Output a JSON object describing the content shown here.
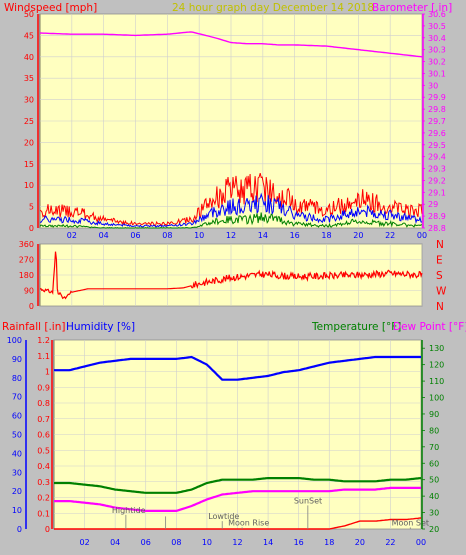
{
  "header": {
    "left_label": "Windspeed [mph]",
    "center_label": "24 hour graph day   December 14 2018",
    "right_label": "Barometer [.in]"
  },
  "colors": {
    "frame": "#c0c0c0",
    "plot_bg": "#ffffc0",
    "grid": "#cfcfcf",
    "wind_axis": "#ff0000",
    "baro_axis": "#ff00ff",
    "title": "#c0c000",
    "humidity": "#0000ff",
    "temperature": "#008000",
    "dewpoint": "#ff00ff",
    "rain": "#ff0000",
    "axis_dark": "#000000"
  },
  "x_ticks": [
    "02",
    "04",
    "06",
    "08",
    "10",
    "12",
    "14",
    "16",
    "18",
    "20",
    "22",
    "00"
  ],
  "chart_data": [
    {
      "type": "line",
      "panel": "wind-barometer",
      "y_left": {
        "label": "Windspeed [mph]",
        "ylim": [
          0,
          50
        ],
        "ticks": [
          "0",
          "5",
          "10",
          "15",
          "20",
          "25",
          "30",
          "35",
          "40",
          "45",
          "50"
        ]
      },
      "y_right": {
        "label": "Barometer [.in]",
        "ylim": [
          28.8,
          30.6
        ],
        "ticks": [
          "28.8",
          "28.9",
          "29",
          "29.1",
          "29.2",
          "29.3",
          "29.4",
          "29.5",
          "29.6",
          "29.7",
          "29.8",
          "29.9",
          "30",
          "30.1",
          "30.2",
          "30.3",
          "30.4",
          "30.5",
          "30.6"
        ]
      },
      "x": [
        0,
        2,
        4,
        6,
        8,
        9.5,
        11,
        12,
        13,
        14,
        15,
        16,
        18,
        20,
        22,
        24
      ],
      "series": [
        {
          "key": "barometer",
          "values": [
            30.44,
            30.43,
            30.43,
            30.42,
            30.43,
            30.45,
            30.4,
            30.36,
            30.35,
            30.35,
            30.34,
            30.34,
            30.33,
            30.3,
            30.27,
            30.24
          ]
        },
        {
          "key": "wind_gust",
          "values": [
            4,
            4,
            2,
            1,
            1,
            2,
            7,
            9,
            9,
            10,
            8,
            6,
            4,
            7,
            5,
            4
          ]
        },
        {
          "key": "wind_avg",
          "values": [
            2,
            2,
            1,
            0.5,
            0.5,
            1,
            4,
            5,
            5,
            6,
            5,
            3,
            2,
            4,
            3,
            2
          ]
        },
        {
          "key": "wind_min",
          "values": [
            0.5,
            0.5,
            0,
            0,
            0,
            0,
            1.5,
            2,
            2,
            2.5,
            2,
            1,
            0.5,
            1.5,
            1,
            0.5
          ]
        }
      ]
    },
    {
      "type": "line",
      "panel": "wind-direction",
      "y_left": {
        "ylim": [
          0,
          360
        ],
        "ticks": [
          "0",
          "90",
          "180",
          "270",
          "360"
        ]
      },
      "y_right_labels": [
        "N",
        "W",
        "S",
        "E",
        "N"
      ],
      "x": [
        0,
        0.8,
        1,
        1.1,
        1.3,
        1.5,
        2,
        3,
        8,
        9,
        10,
        12,
        14,
        16,
        18,
        20,
        22,
        24
      ],
      "values": [
        100,
        80,
        350,
        60,
        80,
        40,
        80,
        100,
        100,
        105,
        130,
        165,
        185,
        170,
        175,
        180,
        190,
        180
      ]
    },
    {
      "type": "line",
      "panel": "rain-humidity-temp",
      "y_left_rain": {
        "label": "Rainfall [.in]",
        "ylim": [
          0,
          1.2
        ],
        "ticks": [
          "0",
          "0.1",
          "0.2",
          "0.3",
          "0.4",
          "0.5",
          "0.6",
          "0.7",
          "0.8",
          "0.9",
          "1",
          "1.1",
          "1.2"
        ]
      },
      "y_left_humidity": {
        "label": "Humidity [%]",
        "ylim": [
          0,
          100
        ],
        "ticks": [
          "0",
          "10",
          "20",
          "30",
          "40",
          "50",
          "60",
          "70",
          "80",
          "90",
          "100"
        ]
      },
      "y_right": {
        "label": "Temperature [°F]",
        "label2": "Dew Point [°F]",
        "ylim": [
          20,
          135
        ],
        "ticks": [
          "20",
          "30",
          "40",
          "50",
          "60",
          "70",
          "80",
          "90",
          "100",
          "110",
          "120",
          "130"
        ]
      },
      "x": [
        0,
        1,
        2,
        3,
        4,
        5,
        6,
        7,
        8,
        9,
        10,
        11,
        12,
        13,
        14,
        15,
        16,
        17,
        18,
        19,
        20,
        21,
        22,
        23,
        24
      ],
      "series": [
        {
          "key": "humidity",
          "values": [
            84,
            84,
            86,
            88,
            89,
            90,
            90,
            90,
            90,
            91,
            87,
            79,
            79,
            80,
            81,
            83,
            84,
            86,
            88,
            89,
            90,
            91,
            91,
            91,
            91
          ]
        },
        {
          "key": "temperature",
          "values": [
            48,
            48,
            47,
            46,
            44,
            43,
            42,
            42,
            42,
            44,
            48,
            50,
            50,
            50,
            51,
            51,
            51,
            50,
            50,
            49,
            49,
            49,
            50,
            50,
            51
          ]
        },
        {
          "key": "dewpoint",
          "values": [
            37,
            37,
            36,
            35,
            33,
            32,
            31,
            31,
            31,
            34,
            38,
            41,
            42,
            43,
            43,
            43,
            43,
            43,
            43,
            44,
            44,
            44,
            45,
            45,
            45
          ]
        },
        {
          "key": "rainfall",
          "values": [
            0,
            0,
            0,
            0,
            0,
            0,
            0,
            0,
            0,
            0,
            0,
            0,
            0,
            0,
            0,
            0,
            0,
            0,
            0,
            0.02,
            0.05,
            0.05,
            0.06,
            0.06,
            0.07
          ]
        }
      ],
      "annotations": [
        {
          "text": "Hightide",
          "x": 4.7,
          "level": 0.09
        },
        {
          "text": "",
          "x": 7.3,
          "level": 0.08
        },
        {
          "text": "Lowtide",
          "x": 11,
          "level": 0.05
        },
        {
          "text": "Moon Rise",
          "x": 12.3,
          "level": 0.01
        },
        {
          "text": "SunSet",
          "x": 16.6,
          "level": 0.15
        },
        {
          "text": "Moon Set",
          "x": 23.3,
          "level": 0.01
        }
      ]
    }
  ],
  "lower_labels": {
    "rain": "Rainfall [.in]",
    "humidity": "Humidity [%]",
    "temperature": "Temperature [°F]",
    "dewpoint": "Dew Point [°F]"
  }
}
